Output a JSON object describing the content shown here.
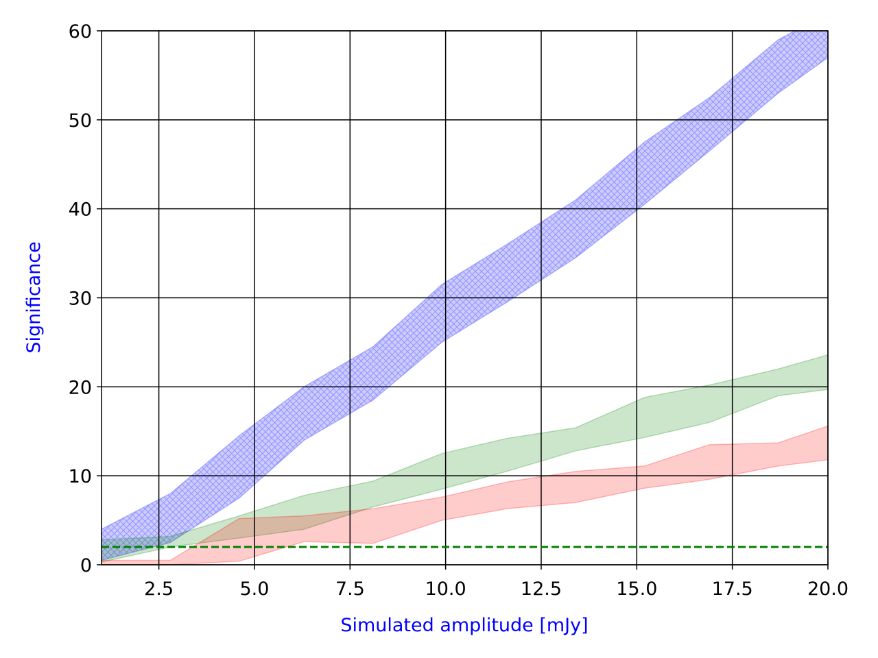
{
  "chart_data": {
    "type": "area",
    "xlabel": "Simulated amplitude [mJy]",
    "ylabel": "Significance",
    "xlim": [
      1.0,
      20.0
    ],
    "ylim": [
      0,
      60
    ],
    "xticks": [
      "2.5",
      "5.0",
      "7.5",
      "10.0",
      "12.5",
      "15.0",
      "17.5",
      "20.0"
    ],
    "yticks": [
      "0",
      "10",
      "20",
      "30",
      "40",
      "50",
      "60"
    ],
    "grid": true,
    "label_color": "#0000ff",
    "bands": [
      {
        "color": "#0000ff",
        "hatched": true,
        "x": [
          1.0,
          2.8,
          4.6,
          6.3,
          8.1,
          9.9,
          11.6,
          13.4,
          15.2,
          16.9,
          18.7,
          20.0
        ],
        "lower": [
          0.5,
          2.5,
          7.5,
          14.0,
          18.5,
          25.0,
          29.5,
          34.5,
          40.5,
          46.5,
          53.0,
          57.0
        ],
        "upper": [
          4.0,
          8.0,
          14.5,
          20.0,
          24.5,
          31.5,
          36.0,
          41.0,
          47.5,
          52.5,
          59.0,
          62.0
        ]
      },
      {
        "color": "#008000",
        "hatched": false,
        "x": [
          1.0,
          2.8,
          4.6,
          6.3,
          8.1,
          9.9,
          11.6,
          13.4,
          15.2,
          16.9,
          18.7,
          20.0
        ],
        "lower": [
          0.3,
          2.0,
          3.0,
          4.0,
          6.5,
          8.5,
          10.5,
          12.8,
          14.3,
          16.0,
          19.0,
          19.7
        ],
        "upper": [
          2.8,
          3.2,
          5.5,
          7.8,
          9.4,
          12.5,
          14.2,
          15.4,
          18.8,
          20.2,
          22.0,
          23.6
        ]
      },
      {
        "color": "#ff0000",
        "hatched": false,
        "x": [
          1.0,
          2.8,
          4.6,
          6.3,
          8.1,
          9.9,
          11.6,
          13.4,
          15.2,
          16.9,
          18.7,
          20.0
        ],
        "lower": [
          0.0,
          0.0,
          0.4,
          2.6,
          2.4,
          5.0,
          6.3,
          7.0,
          8.6,
          9.6,
          11.1,
          11.8
        ],
        "upper": [
          0.5,
          0.5,
          5.2,
          5.5,
          6.3,
          7.6,
          9.3,
          10.5,
          11.1,
          13.5,
          13.7,
          15.6
        ]
      }
    ],
    "threshold": {
      "y": 2.0,
      "color": "#008000",
      "style": "dashed"
    }
  }
}
